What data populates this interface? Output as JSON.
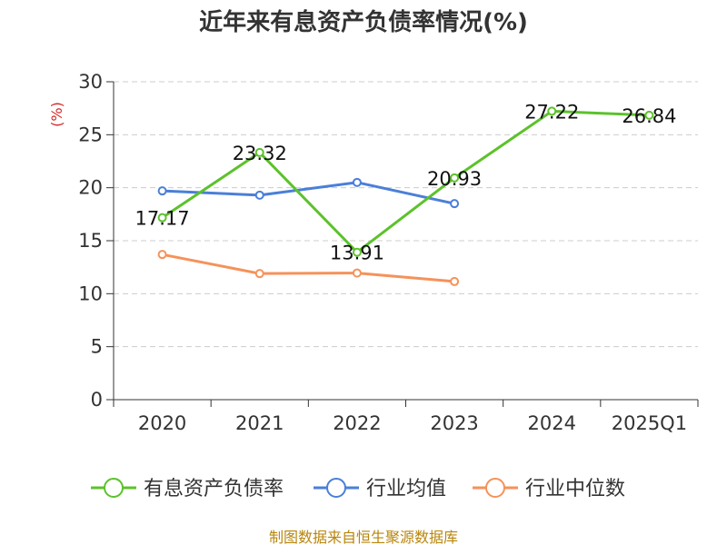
{
  "chart_data": {
    "type": "line",
    "title": "近年来有息资产负债率情况(%)",
    "ylabel": "(%)",
    "categories": [
      "2020",
      "2021",
      "2022",
      "2023",
      "2024",
      "2025Q1"
    ],
    "ylim": [
      0,
      30
    ],
    "yticks": [
      0,
      5,
      10,
      15,
      20,
      25,
      30
    ],
    "grid": true,
    "legend_position": "bottom",
    "series": [
      {
        "name": "有息资产负债率",
        "color": "#5cc22b",
        "values": [
          17.17,
          23.32,
          13.91,
          20.93,
          27.22,
          26.84
        ],
        "data_labels": [
          "17.17",
          "23.32",
          "13.91",
          "20.93",
          "27.22",
          "26.84"
        ]
      },
      {
        "name": "行业均值",
        "color": "#4a7fd9",
        "values": [
          19.7,
          19.3,
          20.5,
          18.5,
          null,
          null
        ]
      },
      {
        "name": "行业中位数",
        "color": "#f5925a",
        "values": [
          13.7,
          11.9,
          11.95,
          11.15,
          null,
          null
        ]
      }
    ]
  },
  "footer": {
    "source": "制图数据来自恒生聚源数据库"
  }
}
